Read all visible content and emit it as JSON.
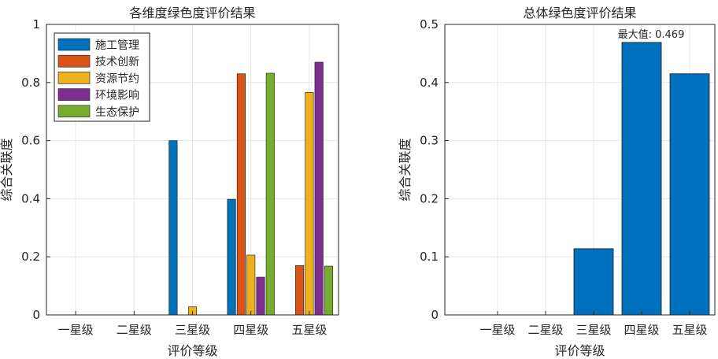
{
  "chart_data": [
    {
      "type": "bar",
      "title": "各维度绿色度评价结果",
      "xlabel": "评价等级",
      "ylabel": "综合关联度",
      "categories": [
        "一星级",
        "二星级",
        "三星级",
        "四星级",
        "五星级"
      ],
      "ylim": [
        0,
        1
      ],
      "yticks": [
        "0",
        "0.2",
        "0.4",
        "0.6",
        "0.8",
        "1"
      ],
      "grid": true,
      "legend_position": "top-left",
      "series": [
        {
          "name": "施工管理",
          "color": "#0072BD",
          "values": [
            0,
            0,
            0.6,
            0.398,
            0
          ]
        },
        {
          "name": "技术创新",
          "color": "#D95319",
          "values": [
            0,
            0,
            0,
            0.83,
            0.17
          ]
        },
        {
          "name": "资源节约",
          "color": "#EDB120",
          "values": [
            0,
            0,
            0.028,
            0.206,
            0.766
          ]
        },
        {
          "name": "环境影响",
          "color": "#7E2F8E",
          "values": [
            0,
            0,
            0,
            0.13,
            0.87
          ]
        },
        {
          "name": "生态保护",
          "color": "#77AC30",
          "values": [
            0,
            0,
            0,
            0.832,
            0.168
          ]
        }
      ]
    },
    {
      "type": "bar",
      "title": "总体绿色度评价结果",
      "xlabel": "评价等级",
      "ylabel": "综合关联度",
      "categories": [
        "一星级",
        "二星级",
        "三星级",
        "四星级",
        "五星级"
      ],
      "ylim": [
        0,
        0.5
      ],
      "yticks": [
        "0",
        "0.1",
        "0.2",
        "0.3",
        "0.4",
        "0.5"
      ],
      "grid": true,
      "color": "#0072BD",
      "values": [
        0,
        0,
        0.114,
        0.469,
        0.415
      ],
      "annotation": "最大值: 0.469"
    }
  ]
}
